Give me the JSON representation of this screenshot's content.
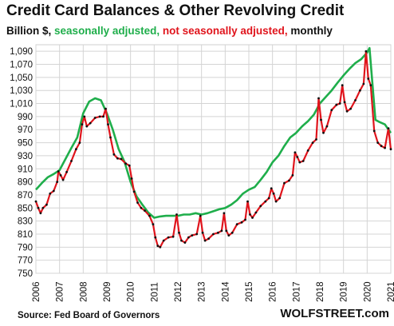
{
  "chart_data": {
    "type": "line",
    "title": "Credit Card Balances & Other Revolving Credit",
    "subtitle": {
      "unit": "Billion $,",
      "sa": "seasonally adjusted,",
      "nsa": "not seasonally adjusted,",
      "freq": "monthly"
    },
    "ylim": [
      750,
      1100
    ],
    "yticks": [
      750,
      770,
      790,
      810,
      830,
      850,
      870,
      890,
      910,
      930,
      950,
      970,
      990,
      1010,
      1030,
      1050,
      1070,
      1090
    ],
    "ytick_labels": [
      "750",
      "770",
      "790",
      "810",
      "830",
      "850",
      "870",
      "890",
      "910",
      "930",
      "950",
      "970",
      "990",
      "1,010",
      "1,030",
      "1,050",
      "1,070",
      "1,090"
    ],
    "xlim": [
      2006,
      2021
    ],
    "xticks": [
      2006,
      2007,
      2008,
      2009,
      2010,
      2011,
      2012,
      2013,
      2014,
      2015,
      2016,
      2017,
      2018,
      2019,
      2020,
      2021
    ],
    "xtick_labels": [
      "2006",
      "2007",
      "2008",
      "2009",
      "2010",
      "2011",
      "2012",
      "2013",
      "2014",
      "2015",
      "2016",
      "2017",
      "2018",
      "2019",
      "2020",
      "2021"
    ],
    "grid": true,
    "series": [
      {
        "name": "seasonally adjusted",
        "color": "#1fae4b",
        "points": [
          [
            2006.0,
            878
          ],
          [
            2006.25,
            888
          ],
          [
            2006.5,
            897
          ],
          [
            2006.75,
            902
          ],
          [
            2007.0,
            908
          ],
          [
            2007.25,
            925
          ],
          [
            2007.5,
            942
          ],
          [
            2007.75,
            958
          ],
          [
            2008.0,
            995
          ],
          [
            2008.25,
            1013
          ],
          [
            2008.5,
            1018
          ],
          [
            2008.75,
            1015
          ],
          [
            2009.0,
            995
          ],
          [
            2009.25,
            970
          ],
          [
            2009.5,
            940
          ],
          [
            2009.75,
            920
          ],
          [
            2010.0,
            890
          ],
          [
            2010.25,
            868
          ],
          [
            2010.5,
            855
          ],
          [
            2010.75,
            843
          ],
          [
            2011.0,
            835
          ],
          [
            2011.25,
            837
          ],
          [
            2011.5,
            838
          ],
          [
            2011.75,
            838
          ],
          [
            2012.0,
            838
          ],
          [
            2012.25,
            840
          ],
          [
            2012.5,
            840
          ],
          [
            2012.75,
            842
          ],
          [
            2013.0,
            840
          ],
          [
            2013.25,
            842
          ],
          [
            2013.5,
            845
          ],
          [
            2013.75,
            848
          ],
          [
            2014.0,
            850
          ],
          [
            2014.25,
            855
          ],
          [
            2014.5,
            862
          ],
          [
            2014.75,
            872
          ],
          [
            2015.0,
            878
          ],
          [
            2015.25,
            882
          ],
          [
            2015.5,
            893
          ],
          [
            2015.75,
            905
          ],
          [
            2016.0,
            920
          ],
          [
            2016.25,
            930
          ],
          [
            2016.5,
            945
          ],
          [
            2016.75,
            958
          ],
          [
            2017.0,
            965
          ],
          [
            2017.25,
            975
          ],
          [
            2017.5,
            983
          ],
          [
            2017.75,
            993
          ],
          [
            2018.0,
            1010
          ],
          [
            2018.25,
            1020
          ],
          [
            2018.5,
            1030
          ],
          [
            2018.75,
            1042
          ],
          [
            2019.0,
            1053
          ],
          [
            2019.25,
            1063
          ],
          [
            2019.5,
            1072
          ],
          [
            2019.75,
            1078
          ],
          [
            2020.0,
            1088
          ],
          [
            2020.1,
            1095
          ],
          [
            2020.2,
            1050
          ],
          [
            2020.35,
            985
          ],
          [
            2020.5,
            982
          ],
          [
            2020.75,
            978
          ],
          [
            2020.9,
            970
          ],
          [
            2021.0,
            965
          ]
        ]
      },
      {
        "name": "not seasonally adjusted",
        "color": "#e0141c",
        "points": [
          [
            2006.0,
            860
          ],
          [
            2006.1,
            850
          ],
          [
            2006.2,
            842
          ],
          [
            2006.3,
            850
          ],
          [
            2006.45,
            855
          ],
          [
            2006.6,
            872
          ],
          [
            2006.75,
            876
          ],
          [
            2006.9,
            890
          ],
          [
            2006.95,
            906
          ],
          [
            2007.05,
            900
          ],
          [
            2007.15,
            893
          ],
          [
            2007.3,
            905
          ],
          [
            2007.5,
            922
          ],
          [
            2007.7,
            940
          ],
          [
            2007.85,
            950
          ],
          [
            2007.95,
            978
          ],
          [
            2008.05,
            990
          ],
          [
            2008.15,
            975
          ],
          [
            2008.3,
            980
          ],
          [
            2008.5,
            988
          ],
          [
            2008.7,
            990
          ],
          [
            2008.85,
            990
          ],
          [
            2008.95,
            1002
          ],
          [
            2009.05,
            978
          ],
          [
            2009.15,
            958
          ],
          [
            2009.3,
            932
          ],
          [
            2009.45,
            926
          ],
          [
            2009.6,
            925
          ],
          [
            2009.8,
            918
          ],
          [
            2009.95,
            915
          ],
          [
            2010.05,
            895
          ],
          [
            2010.15,
            875
          ],
          [
            2010.3,
            858
          ],
          [
            2010.45,
            850
          ],
          [
            2010.6,
            846
          ],
          [
            2010.8,
            838
          ],
          [
            2010.95,
            825
          ],
          [
            2011.05,
            805
          ],
          [
            2011.15,
            792
          ],
          [
            2011.25,
            790
          ],
          [
            2011.4,
            800
          ],
          [
            2011.6,
            805
          ],
          [
            2011.8,
            806
          ],
          [
            2011.95,
            840
          ],
          [
            2012.05,
            812
          ],
          [
            2012.15,
            800
          ],
          [
            2012.3,
            797
          ],
          [
            2012.45,
            805
          ],
          [
            2012.6,
            808
          ],
          [
            2012.8,
            810
          ],
          [
            2012.95,
            838
          ],
          [
            2013.05,
            812
          ],
          [
            2013.15,
            800
          ],
          [
            2013.3,
            803
          ],
          [
            2013.5,
            810
          ],
          [
            2013.7,
            812
          ],
          [
            2013.85,
            815
          ],
          [
            2013.95,
            842
          ],
          [
            2014.05,
            815
          ],
          [
            2014.15,
            808
          ],
          [
            2014.3,
            812
          ],
          [
            2014.5,
            825
          ],
          [
            2014.7,
            828
          ],
          [
            2014.85,
            832
          ],
          [
            2014.95,
            860
          ],
          [
            2015.05,
            840
          ],
          [
            2015.15,
            835
          ],
          [
            2015.3,
            843
          ],
          [
            2015.5,
            853
          ],
          [
            2015.7,
            860
          ],
          [
            2015.85,
            865
          ],
          [
            2015.95,
            880
          ],
          [
            2016.05,
            872
          ],
          [
            2016.15,
            860
          ],
          [
            2016.3,
            865
          ],
          [
            2016.5,
            888
          ],
          [
            2016.7,
            892
          ],
          [
            2016.85,
            900
          ],
          [
            2016.95,
            935
          ],
          [
            2017.05,
            928
          ],
          [
            2017.15,
            920
          ],
          [
            2017.3,
            922
          ],
          [
            2017.5,
            938
          ],
          [
            2017.7,
            950
          ],
          [
            2017.85,
            955
          ],
          [
            2017.95,
            1018
          ],
          [
            2018.05,
            985
          ],
          [
            2018.15,
            965
          ],
          [
            2018.3,
            975
          ],
          [
            2018.5,
            1000
          ],
          [
            2018.7,
            1008
          ],
          [
            2018.85,
            1010
          ],
          [
            2018.95,
            1038
          ],
          [
            2019.05,
            1012
          ],
          [
            2019.15,
            998
          ],
          [
            2019.3,
            1002
          ],
          [
            2019.5,
            1015
          ],
          [
            2019.7,
            1030
          ],
          [
            2019.85,
            1040
          ],
          [
            2019.95,
            1090
          ],
          [
            2020.05,
            1048
          ],
          [
            2020.15,
            1038
          ],
          [
            2020.3,
            968
          ],
          [
            2020.45,
            950
          ],
          [
            2020.6,
            945
          ],
          [
            2020.75,
            942
          ],
          [
            2020.9,
            972
          ],
          [
            2021.0,
            940
          ]
        ]
      }
    ]
  },
  "source": "Source: Fed Board of Governors",
  "brand": "WOLFSTREET.com"
}
